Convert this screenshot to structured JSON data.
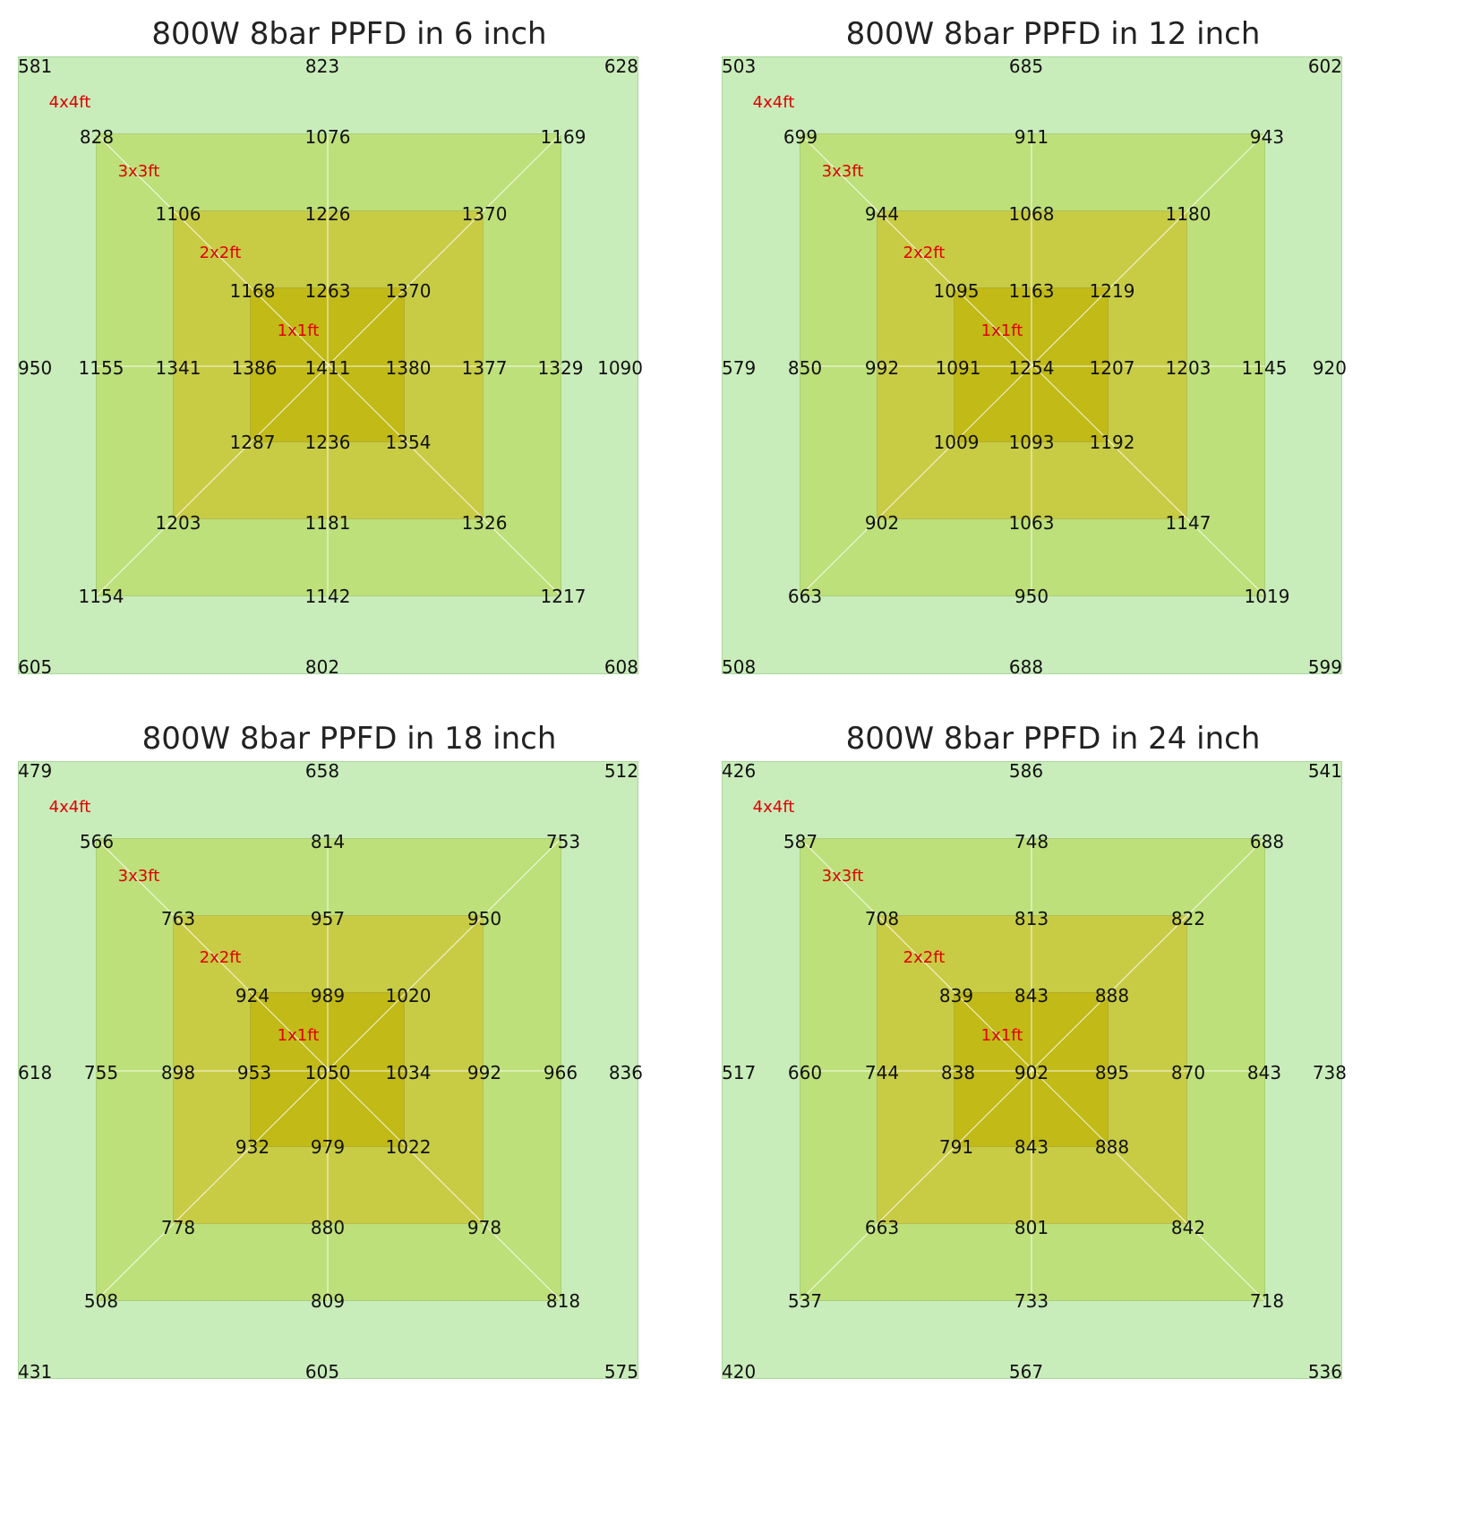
{
  "colors": {
    "area_4x4": "#c9ecbb",
    "area_3x3": "#bde07a",
    "area_2x2": "#c8cc45",
    "area_1x1": "#c1ba17",
    "label_red": "#e00000"
  },
  "zone_labels": [
    "4x4ft",
    "3x3ft",
    "2x2ft",
    "1x1ft"
  ],
  "panels": [
    {
      "title": "800W 8bar PPFD in 6 inch",
      "ring4": {
        "tl": "581",
        "top": "823",
        "tr": "628",
        "left": "950",
        "right": "1090",
        "bl": "605",
        "bottom": "802",
        "br": "608"
      },
      "ring3": {
        "tl": "828",
        "top": "1076",
        "tr": "1169",
        "left": "1155",
        "right": "1329",
        "bl": "1154",
        "bottom": "1142",
        "br": "1217"
      },
      "ring2": {
        "tl": "1106",
        "top": "1226",
        "tr": "1370",
        "left": "1341",
        "right": "1377",
        "bl": "1203",
        "bottom": "1181",
        "br": "1326"
      },
      "ring1": {
        "tl": "1168",
        "top": "1263",
        "tr": "1370",
        "left": "1386",
        "right": "1380",
        "bl": "1287",
        "bottom": "1236",
        "br": "1354"
      },
      "center": "1411"
    },
    {
      "title": "800W 8bar PPFD in 12 inch",
      "ring4": {
        "tl": "503",
        "top": "685",
        "tr": "602",
        "left": "579",
        "right": "920",
        "bl": "508",
        "bottom": "688",
        "br": "599"
      },
      "ring3": {
        "tl": "699",
        "top": "911",
        "tr": "943",
        "left": "850",
        "right": "1145",
        "bl": "663",
        "bottom": "950",
        "br": "1019"
      },
      "ring2": {
        "tl": "944",
        "top": "1068",
        "tr": "1180",
        "left": "992",
        "right": "1203",
        "bl": "902",
        "bottom": "1063",
        "br": "1147"
      },
      "ring1": {
        "tl": "1095",
        "top": "1163",
        "tr": "1219",
        "left": "1091",
        "right": "1207",
        "bl": "1009",
        "bottom": "1093",
        "br": "1192"
      },
      "center": "1254"
    },
    {
      "title": "800W 8bar PPFD in 18 inch",
      "ring4": {
        "tl": "479",
        "top": "658",
        "tr": "512",
        "left": "618",
        "right": "836",
        "bl": "431",
        "bottom": "605",
        "br": "575"
      },
      "ring3": {
        "tl": "566",
        "top": "814",
        "tr": "753",
        "left": "755",
        "right": "966",
        "bl": "508",
        "bottom": "809",
        "br": "818"
      },
      "ring2": {
        "tl": "763",
        "top": "957",
        "tr": "950",
        "left": "898",
        "right": "992",
        "bl": "778",
        "bottom": "880",
        "br": "978"
      },
      "ring1": {
        "tl": "924",
        "top": "989",
        "tr": "1020",
        "left": "953",
        "right": "1034",
        "bl": "932",
        "bottom": "979",
        "br": "1022"
      },
      "center": "1050"
    },
    {
      "title": "800W 8bar PPFD in 24 inch",
      "ring4": {
        "tl": "426",
        "top": "586",
        "tr": "541",
        "left": "517",
        "right": "738",
        "bl": "420",
        "bottom": "567",
        "br": "536"
      },
      "ring3": {
        "tl": "587",
        "top": "748",
        "tr": "688",
        "left": "660",
        "right": "843",
        "bl": "537",
        "bottom": "733",
        "br": "718"
      },
      "ring2": {
        "tl": "708",
        "top": "813",
        "tr": "822",
        "left": "744",
        "right": "870",
        "bl": "663",
        "bottom": "801",
        "br": "842"
      },
      "ring1": {
        "tl": "839",
        "top": "843",
        "tr": "888",
        "left": "838",
        "right": "895",
        "bl": "791",
        "bottom": "843",
        "br": "888"
      },
      "center": "902"
    }
  ]
}
